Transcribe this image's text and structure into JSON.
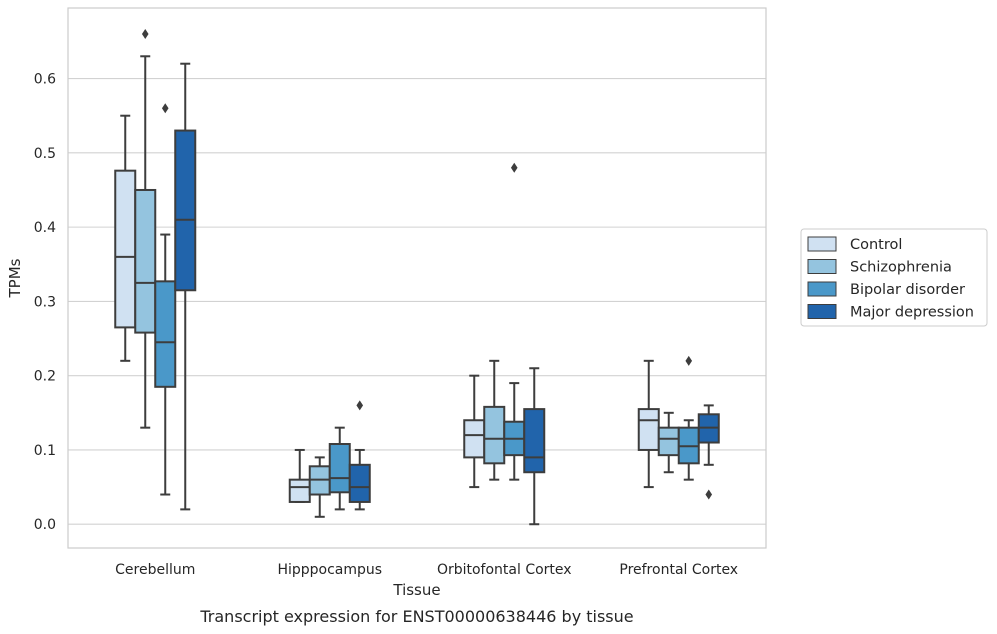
{
  "caption": "Transcript expression for ENST00000638446 by tissue",
  "chart_data": {
    "type": "box",
    "title": "",
    "xlabel": "Tissue",
    "ylabel": "TPMs",
    "ylim": [
      -0.032,
      0.695
    ],
    "yticks": [
      0.0,
      0.1,
      0.2,
      0.3,
      0.4,
      0.5,
      0.6
    ],
    "ytick_labels": [
      "0.0",
      "0.1",
      "0.2",
      "0.3",
      "0.4",
      "0.5",
      "0.6"
    ],
    "grid": true,
    "legend_position": "right-center",
    "categories": [
      "Cerebellum",
      "Hipppocampus",
      "Orbitofontal Cortex",
      "Prefrontal Cortex"
    ],
    "series": [
      {
        "name": "Control",
        "color": "#d0e1f2",
        "boxes": [
          {
            "whisker_low": 0.22,
            "q1": 0.265,
            "median": 0.36,
            "q3": 0.476,
            "whisker_high": 0.55,
            "outliers": []
          },
          {
            "whisker_low": 0.03,
            "q1": 0.03,
            "median": 0.05,
            "q3": 0.06,
            "whisker_high": 0.1,
            "outliers": []
          },
          {
            "whisker_low": 0.05,
            "q1": 0.09,
            "median": 0.12,
            "q3": 0.14,
            "whisker_high": 0.2,
            "outliers": []
          },
          {
            "whisker_low": 0.05,
            "q1": 0.1,
            "median": 0.14,
            "q3": 0.155,
            "whisker_high": 0.22,
            "outliers": []
          }
        ]
      },
      {
        "name": "Schizophrenia",
        "color": "#94c4df",
        "boxes": [
          {
            "whisker_low": 0.13,
            "q1": 0.258,
            "median": 0.325,
            "q3": 0.45,
            "whisker_high": 0.63,
            "outliers": [
              0.66
            ]
          },
          {
            "whisker_low": 0.01,
            "q1": 0.04,
            "median": 0.06,
            "q3": 0.078,
            "whisker_high": 0.09,
            "outliers": []
          },
          {
            "whisker_low": 0.06,
            "q1": 0.082,
            "median": 0.115,
            "q3": 0.158,
            "whisker_high": 0.22,
            "outliers": []
          },
          {
            "whisker_low": 0.07,
            "q1": 0.093,
            "median": 0.115,
            "q3": 0.13,
            "whisker_high": 0.15,
            "outliers": []
          }
        ]
      },
      {
        "name": "Bipolar disorder",
        "color": "#4a98c9",
        "boxes": [
          {
            "whisker_low": 0.04,
            "q1": 0.185,
            "median": 0.245,
            "q3": 0.327,
            "whisker_high": 0.39,
            "outliers": [
              0.56
            ]
          },
          {
            "whisker_low": 0.02,
            "q1": 0.043,
            "median": 0.062,
            "q3": 0.108,
            "whisker_high": 0.13,
            "outliers": []
          },
          {
            "whisker_low": 0.06,
            "q1": 0.093,
            "median": 0.115,
            "q3": 0.138,
            "whisker_high": 0.19,
            "outliers": [
              0.48
            ]
          },
          {
            "whisker_low": 0.06,
            "q1": 0.082,
            "median": 0.105,
            "q3": 0.13,
            "whisker_high": 0.14,
            "outliers": [
              0.22
            ]
          }
        ]
      },
      {
        "name": "Major depression",
        "color": "#2164ab",
        "boxes": [
          {
            "whisker_low": 0.02,
            "q1": 0.315,
            "median": 0.41,
            "q3": 0.53,
            "whisker_high": 0.62,
            "outliers": []
          },
          {
            "whisker_low": 0.02,
            "q1": 0.03,
            "median": 0.05,
            "q3": 0.08,
            "whisker_high": 0.1,
            "outliers": [
              0.16
            ]
          },
          {
            "whisker_low": 0.0,
            "q1": 0.07,
            "median": 0.09,
            "q3": 0.155,
            "whisker_high": 0.21,
            "outliers": []
          },
          {
            "whisker_low": 0.08,
            "q1": 0.11,
            "median": 0.13,
            "q3": 0.148,
            "whisker_high": 0.16,
            "outliers": [
              0.04
            ]
          }
        ]
      }
    ]
  }
}
